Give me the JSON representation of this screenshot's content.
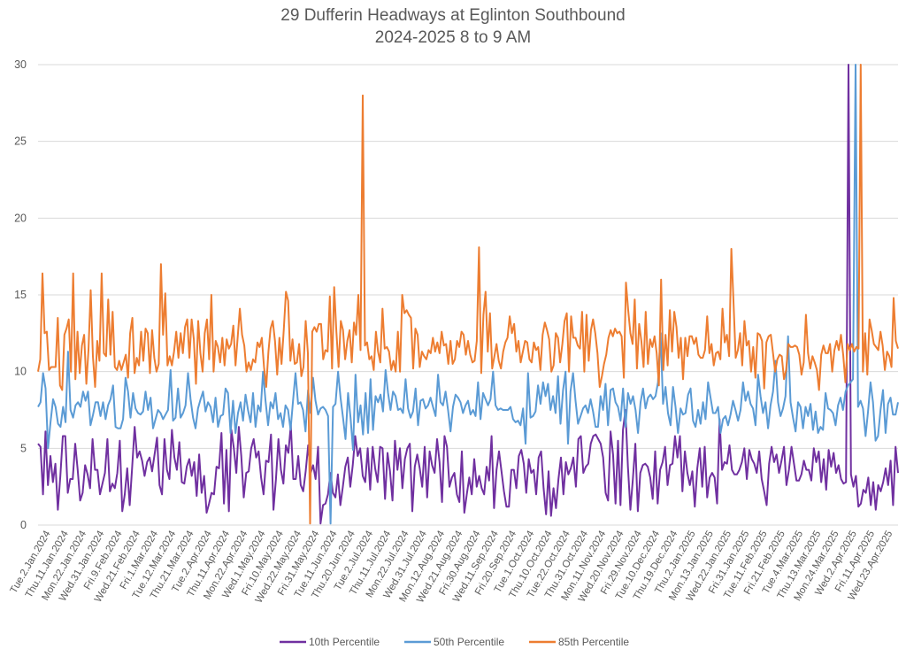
{
  "chart_data": {
    "type": "line",
    "title": "29 Dufferin Headways at Eglinton Southbound",
    "subtitle": "2024-2025 8 to 9 AM",
    "xlabel": "",
    "ylabel": "",
    "ylim": [
      0,
      30
    ],
    "yticks": [
      0,
      5,
      10,
      15,
      20,
      25,
      30
    ],
    "grid": true,
    "legend_position": "bottom",
    "x_tick_labels": [
      "Tue.2.Jan.2024",
      "Thu.11.Jan.2024",
      "Mon.22.Jan.2024",
      "Wed.31.Jan.2024",
      "Fri.9.Feb.2024",
      "Wed.21.Feb.2024",
      "Fri.1.Mar.2024",
      "Tue.12.Mar.2024",
      "Thu.21.Mar.2024",
      "Tue.2.Apr.2024",
      "Thu.11.Apr.2024",
      "Mon.22.Apr.2024",
      "Wed.1.May.2024",
      "Fri.10.May.2024",
      "Wed.22.May.2024",
      "Fri.31.May.2024",
      "Tue.11.Jun.2024",
      "Thu.20.Jun.2024",
      "Tue.2.Jul.2024",
      "Thu.11.Jul.2024",
      "Mon.22.Jul.2024",
      "Wed.31.Jul.2024",
      "Mon.12.Aug.2024",
      "Wed.21.Aug.2024",
      "Fri.30.Aug.2024",
      "Wed.11.Sep.2024",
      "Fri.20.Sep.2024",
      "Tue.1.Oct.2024",
      "Thu.10.Oct.2024",
      "Tue.22.Oct.2024",
      "Thu.31.Oct.2024",
      "Mon.11.Nov.2024",
      "Wed.20.Nov.2024",
      "Fri.29.Nov.2024",
      "Tue.10.Dec.2024",
      "Thu.19.Dec.2024",
      "Thu.2.Jan.2025",
      "Mon.13.Jan.2025",
      "Wed.22.Jan.2025",
      "Fri.31.Jan.2025",
      "Tue.11.Feb.2025",
      "Fri.21.Feb.2025",
      "Tue.4.Mar.2025",
      "Thu.13.Mar.2025",
      "Mon.24.Mar.2025",
      "Wed.2.Apr.2025",
      "Fri.11.Apr.2025",
      "Wed.23.Apr.2025"
    ],
    "series": [
      {
        "name": "10th Percentile",
        "color": "#7030a0",
        "values": [
          5.3,
          5.1,
          2.0,
          6.1,
          2.6,
          4.5,
          2.8,
          4.0,
          1.0,
          3.2,
          5.8,
          5.8,
          2.1,
          3.0,
          3.0,
          5.3,
          3.6,
          1.6,
          2.1,
          3.9,
          3.3,
          2.4,
          5.6,
          3.6,
          3.6,
          2.0,
          2.7,
          3.4,
          5.6,
          2.2,
          2.7,
          2.4,
          3.4,
          5.5,
          0.9,
          2.0,
          3.7,
          1.3,
          3.8,
          6.4,
          4.4,
          4.8,
          4.2,
          3.2,
          4.1,
          4.4,
          3.5,
          4.6,
          5.7,
          2.6,
          2.0,
          5.6,
          3.6,
          3.0,
          6.2,
          4.4,
          3.6,
          5.4,
          2.8,
          2.7,
          3.8,
          4.3,
          3.2,
          4.1,
          1.9,
          4.6,
          2.1,
          3.2,
          0.8,
          1.4,
          2.1,
          2.0,
          3.8,
          3.7,
          6.0,
          1.4,
          4.9,
          0.9,
          6.2,
          5.0,
          3.4,
          6.4,
          4.5,
          1.8,
          3.4,
          3.5,
          5.0,
          5.6,
          4.4,
          4.8,
          3.1,
          2.0,
          4.2,
          4.1,
          5.9,
          1.0,
          3.0,
          5.6,
          3.6,
          2.7,
          5.2,
          4.7,
          6.5,
          3.0,
          3.0,
          4.5,
          2.6,
          2.2,
          3.5,
          5.2,
          3.4,
          3.9,
          3.0,
          5.1,
          0.1,
          1.3,
          1.4,
          2.0,
          3.4,
          2.1,
          1.8,
          3.3,
          1.3,
          2.5,
          3.8,
          4.4,
          2.5,
          3.9,
          5.8,
          4.5,
          5.0,
          3.2,
          2.8,
          5.0,
          2.3,
          5.1,
          3.7,
          2.8,
          5.1,
          5.0,
          1.7,
          4.7,
          3.5,
          1.6,
          5.5,
          3.6,
          5.0,
          2.4,
          4.3,
          5.0,
          5.3,
          0.9,
          3.8,
          4.6,
          3.7,
          2.5,
          5.1,
          1.8,
          4.8,
          3.9,
          3.4,
          5.6,
          4.1,
          1.5,
          5.8,
          5.1,
          2.5,
          3.1,
          3.4,
          2.0,
          1.5,
          4.8,
          0.8,
          2.0,
          3.1,
          2.0,
          4.3,
          2.5,
          3.2,
          2.4,
          2.0,
          3.8,
          2.9,
          5.8,
          1.1,
          3.6,
          4.8,
          3.5,
          2.2,
          1.2,
          1.2,
          3.6,
          3.6,
          2.4,
          4.5,
          4.9,
          4.0,
          2.1,
          4.3,
          3.4,
          3.6,
          2.0,
          4.4,
          4.8,
          2.4,
          0.7,
          3.5,
          0.6,
          2.4,
          1.1,
          3.0,
          4.4,
          2.0,
          4.1,
          3.3,
          3.7,
          4.4,
          2.5,
          5.6,
          5.8,
          3.4,
          3.8,
          4.0,
          5.3,
          5.8,
          5.9,
          5.6,
          5.3,
          4.4,
          2.1,
          1.6,
          6.1,
          4.6,
          1.4,
          5.5,
          1.3,
          6.2,
          7.5,
          3.8,
          1.0,
          3.0,
          5.3,
          0.9,
          3.4,
          3.9,
          4.0,
          3.8,
          3.1,
          1.7,
          4.8,
          1.4,
          3.6,
          4.1,
          5.1,
          2.6,
          3.9,
          4.0,
          5.8,
          4.4,
          5.8,
          2.2,
          4.8,
          3.4,
          2.6,
          3.5,
          1.2,
          3.7,
          5.0,
          2.5,
          5.1,
          1.8,
          3.1,
          3.4,
          3.1,
          1.4,
          6.9,
          3.6,
          4.1,
          4.0,
          5.2,
          3.6,
          3.3,
          3.3,
          3.6,
          4.1,
          5.0,
          3.0,
          4.9,
          4.3,
          4.0,
          3.4,
          4.8,
          3.0,
          2.2,
          1.3,
          4.0,
          5.1,
          4.1,
          4.6,
          3.4,
          4.2,
          5.1,
          2.6,
          3.6,
          5.1,
          4.0,
          2.9,
          2.9,
          3.3,
          4.2,
          3.6,
          3.6,
          2.9,
          5.0,
          4.1,
          4.8,
          2.8,
          4.3,
          2.3,
          4.9,
          3.8,
          4.7,
          3.4,
          3.9,
          3.0,
          2.7,
          2.8,
          30.0,
          3.3,
          2.5,
          3.2,
          1.2,
          1.4,
          2.3,
          2.1,
          3.1,
          1.3,
          2.8,
          1.0,
          2.6,
          2.2,
          2.8,
          3.7,
          2.6,
          4.2,
          1.3,
          5.1,
          3.4
        ]
      },
      {
        "name": "50th Percentile",
        "color": "#5b9bd5",
        "values": [
          7.7,
          8.0,
          9.9,
          8.9,
          5.0,
          6.7,
          8.2,
          7.7,
          6.6,
          6.4,
          7.7,
          6.7,
          11.3,
          7.5,
          7.0,
          7.8,
          8.0,
          7.7,
          8.7,
          8.1,
          8.7,
          6.5,
          7.2,
          8.0,
          8.0,
          7.1,
          8.0,
          6.9,
          7.8,
          8.2,
          9.1,
          6.4,
          6.3,
          6.3,
          6.9,
          9.6,
          8.7,
          7.0,
          8.6,
          7.6,
          7.3,
          7.2,
          7.4,
          8.7,
          7.5,
          8.3,
          6.3,
          6.9,
          7.5,
          7.3,
          6.9,
          7.2,
          7.5,
          10.1,
          6.8,
          7.0,
          8.9,
          7.0,
          7.3,
          7.8,
          9.9,
          8.2,
          7.0,
          6.3,
          7.6,
          8.2,
          8.7,
          7.4,
          8.0,
          7.7,
          6.7,
          8.3,
          6.4,
          7.1,
          7.2,
          8.9,
          8.6,
          6.0,
          8.1,
          6.0,
          7.3,
          8.0,
          6.8,
          8.5,
          7.5,
          6.7,
          8.6,
          6.4,
          7.8,
          7.4,
          10.0,
          8.1,
          6.5,
          8.0,
          7.6,
          8.6,
          6.9,
          7.3,
          6.4,
          7.8,
          7.5,
          6.2,
          8.1,
          9.9,
          7.9,
          8.0,
          7.5,
          6.1,
          8.8,
          7.3,
          9.6,
          8.1,
          7.2,
          7.6,
          7.7,
          7.5,
          7.1,
          0.1,
          7.7,
          7.9,
          10.0,
          8.3,
          7.0,
          5.6,
          8.6,
          7.0,
          4.9,
          9.8,
          6.7,
          7.8,
          5.9,
          8.6,
          6.0,
          9.5,
          6.2,
          8.4,
          8.0,
          8.5,
          7.4,
          10.1,
          8.6,
          7.5,
          8.7,
          8.4,
          7.5,
          7.6,
          7.3,
          9.5,
          7.6,
          7.0,
          7.4,
          8.9,
          6.5,
          8.1,
          8.2,
          7.6,
          7.8,
          8.3,
          7.7,
          7.1,
          9.8,
          8.0,
          7.8,
          8.7,
          7.5,
          6.1,
          7.7,
          8.5,
          8.3,
          8.0,
          7.3,
          7.8,
          8.1,
          7.2,
          7.5,
          7.1,
          9.3,
          6.9,
          8.6,
          8.2,
          7.8,
          8.2,
          10.0,
          7.8,
          7.5,
          7.6,
          7.5,
          7.5,
          7.5,
          7.7,
          6.9,
          6.7,
          6.8,
          6.5,
          7.6,
          5.3,
          9.9,
          7.0,
          7.1,
          7.4,
          9.1,
          7.9,
          9.3,
          8.4,
          9.2,
          7.5,
          8.4,
          7.3,
          9.7,
          6.6,
          8.8,
          10.0,
          5.3,
          8.7,
          9.9,
          8.1,
          6.6,
          7.1,
          7.6,
          7.8,
          7.3,
          8.2,
          7.4,
          6.4,
          6.4,
          8.4,
          7.5,
          9.2,
          6.5,
          8.8,
          8.9,
          8.0,
          7.7,
          6.8,
          8.9,
          6.4,
          8.6,
          7.9,
          8.4,
          7.5,
          6.0,
          8.0,
          8.9,
          7.6,
          8.3,
          8.5,
          8.2,
          8.4,
          9.3,
          12.5,
          7.9,
          9.0,
          7.3,
          6.5,
          9.0,
          7.7,
          6.0,
          7.6,
          7.2,
          7.3,
          8.5,
          8.9,
          6.8,
          6.4,
          7.5,
          6.6,
          8.0,
          6.9,
          9.3,
          8.3,
          7.3,
          7.3,
          7.7,
          6.0,
          6.9,
          7.1,
          6.5,
          7.2,
          8.1,
          7.5,
          6.8,
          7.5,
          9.3,
          8.1,
          8.7,
          7.9,
          7.6,
          6.5,
          9.8,
          8.4,
          7.3,
          8.0,
          6.3,
          7.8,
          8.7,
          10.7,
          8.0,
          7.1,
          7.6,
          8.4,
          12.3,
          8.0,
          7.0,
          6.1,
          8.0,
          7.7,
          6.3,
          7.7,
          7.1,
          7.9,
          6.2,
          7.4,
          6.0,
          6.4,
          6.2,
          8.6,
          7.6,
          7.5,
          7.3,
          6.5,
          7.8,
          8.3,
          7.5,
          8.7,
          9.1,
          9.3,
          9.5,
          30.0,
          7.7,
          8.1,
          7.6,
          5.8,
          7.4,
          9.3,
          8.0,
          5.5,
          5.8,
          7.5,
          8.8,
          6.0,
          7.9,
          8.3,
          7.2,
          7.2,
          8.0
        ]
      },
      {
        "name": "85th Percentile",
        "color": "#ed7d31",
        "values": [
          10.0,
          10.8,
          16.4,
          12.5,
          12.6,
          10.1,
          10.3,
          10.3,
          10.3,
          13.5,
          9.1,
          8.8,
          12.4,
          12.8,
          13.4,
          10.0,
          16.4,
          9.5,
          12.6,
          9.9,
          11.7,
          12.4,
          9.2,
          11.4,
          15.3,
          11.0,
          9.0,
          12.0,
          10.7,
          16.4,
          11.2,
          11.0,
          14.7,
          11.1,
          13.9,
          10.3,
          10.1,
          10.7,
          10.1,
          10.6,
          11.1,
          9.6,
          12.5,
          13.5,
          9.9,
          10.9,
          10.4,
          12.6,
          10.7,
          12.8,
          12.5,
          9.9,
          12.7,
          10.9,
          10.0,
          10.5,
          17.0,
          12.4,
          15.1,
          10.4,
          11.0,
          10.4,
          11.3,
          12.6,
          10.9,
          12.5,
          11.2,
          12.9,
          13.4,
          10.9,
          13.4,
          12.1,
          9.2,
          13.3,
          11.2,
          10.0,
          12.5,
          13.4,
          10.8,
          15.0,
          10.0,
          12.0,
          11.6,
          10.6,
          12.2,
          10.4,
          12.1,
          11.5,
          11.8,
          13.0,
          10.4,
          12.2,
          14.1,
          12.4,
          11.7,
          10.0,
          10.6,
          10.1,
          10.8,
          10.6,
          11.9,
          11.6,
          12.2,
          10.3,
          9.0,
          11.3,
          12.8,
          13.3,
          12.0,
          9.8,
          12.2,
          10.5,
          12.7,
          15.2,
          14.6,
          10.7,
          12.1,
          10.5,
          10.6,
          11.8,
          9.7,
          10.3,
          13.3,
          11.2,
          0.1,
          12.6,
          12.9,
          12.6,
          13.1,
          13.1,
          10.8,
          11.4,
          11.3,
          14.9,
          10.2,
          15.5,
          12.6,
          10.3,
          13.3,
          12.7,
          10.8,
          12.0,
          12.7,
          10.6,
          13.2,
          12.4,
          15.0,
          11.4,
          28.0,
          11.7,
          11.9,
          10.8,
          11.0,
          10.1,
          12.6,
          11.3,
          10.6,
          14.1,
          11.5,
          11.6,
          11.3,
          10.1,
          10.7,
          10.0,
          12.6,
          10.0,
          15.0,
          13.8,
          14.0,
          13.7,
          13.5,
          10.2,
          12.8,
          12.4,
          10.3,
          11.3,
          11.0,
          10.8,
          11.4,
          11.2,
          12.2,
          11.3,
          11.9,
          11.2,
          12.6,
          11.7,
          11.8,
          10.5,
          12.0,
          10.5,
          10.8,
          12.0,
          11.6,
          12.6,
          12.4,
          11.1,
          12.0,
          11.1,
          10.6,
          10.7,
          12.0,
          18.1,
          9.9,
          13.7,
          15.2,
          11.3,
          13.8,
          10.2,
          11.0,
          11.8,
          10.7,
          10.2,
          11.3,
          11.9,
          12.2,
          13.6,
          12.5,
          13.1,
          11.3,
          12.0,
          10.6,
          11.3,
          12.0,
          11.9,
          10.8,
          10.6,
          11.9,
          11.4,
          11.6,
          10.1,
          12.4,
          13.2,
          12.7,
          12.1,
          10.0,
          10.4,
          12.5,
          12.2,
          10.6,
          11.8,
          13.3,
          13.8,
          10.0,
          13.6,
          12.2,
          12.2,
          11.7,
          11.5,
          13.9,
          10.0,
          13.7,
          10.7,
          12.7,
          13.4,
          12.5,
          11.2,
          9.0,
          9.7,
          10.5,
          11.1,
          12.2,
          12.7,
          12.3,
          12.8,
          12.5,
          12.6,
          12.3,
          9.6,
          15.8,
          14.0,
          12.5,
          11.8,
          14.7,
          10.2,
          13.1,
          12.0,
          10.3,
          13.9,
          10.5,
          12.1,
          11.6,
          12.3,
          11.2,
          9.1,
          16.0,
          10.1,
          12.4,
          10.4,
          14.0,
          11.3,
          13.9,
          12.9,
          10.9,
          12.2,
          9.5,
          12.2,
          11.0,
          12.3,
          12.3,
          11.8,
          12.2,
          11.1,
          10.9,
          10.9,
          11.4,
          13.6,
          11.2,
          11.8,
          10.4,
          11.2,
          11.3,
          10.8,
          14.1,
          11.9,
          12.4,
          11.0,
          18.0,
          14.6,
          10.9,
          11.4,
          12.5,
          10.4,
          13.3,
          11.7,
          12.0,
          10.0,
          11.6,
          9.6,
          12.5,
          12.4,
          12.0,
          8.9,
          11.9,
          12.3,
          12.4,
          11.2,
          10.0,
          10.8,
          11.1,
          11.0,
          9.5,
          10.1,
          11.8,
          11.6,
          11.6,
          11.7,
          11.6,
          11.1,
          9.8,
          10.6,
          13.7,
          11.2,
          10.2,
          11.0,
          10.6,
          10.1,
          8.8,
          11.1,
          11.7,
          11.2,
          11.2,
          11.8,
          10.0,
          11.4,
          12.0,
          11.4,
          12.4,
          11.1,
          9.3,
          11.8,
          11.4,
          11.8,
          11.3,
          11.6,
          11.5,
          30.0,
          10.0,
          12.5,
          9.8,
          13.4,
          12.7,
          11.8,
          11.6,
          11.4,
          12.6,
          11.7,
          10.1,
          11.3,
          11.0,
          10.3,
          14.8,
          12.0,
          11.5
        ]
      }
    ]
  }
}
